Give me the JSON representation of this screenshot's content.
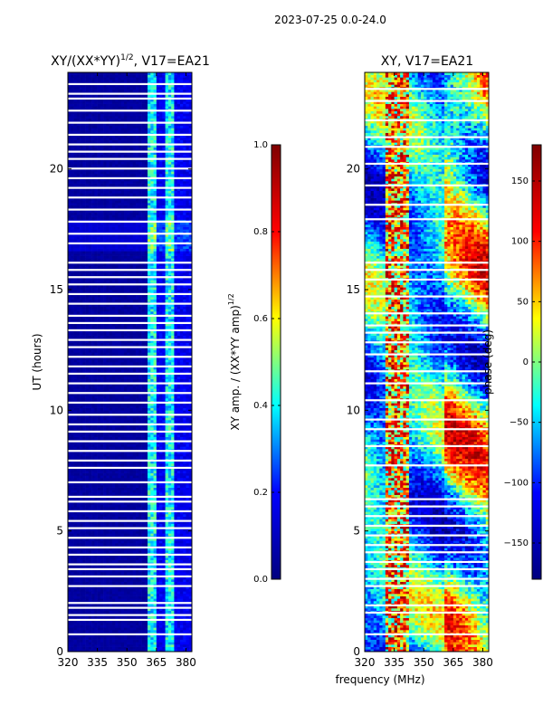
{
  "suptitle": "2023-07-25 0.0-24.0",
  "xlabel": "frequency (MHz)",
  "colormap": [
    "#00007f",
    "#0000ff",
    "#00ffff",
    "#ffff00",
    "#ff0000",
    "#7f0000"
  ],
  "chart_data": [
    {
      "type": "heatmap",
      "title": "XY/(XX*YY)",
      "title_exponent": "1/2",
      "title_suffix": ", V17=EA21",
      "ylabel": "UT (hours)",
      "xlim": [
        320,
        383
      ],
      "ylim": [
        0,
        24
      ],
      "xticks": [
        320,
        335,
        350,
        365,
        380
      ],
      "yticks": [
        0,
        5,
        10,
        15,
        20
      ],
      "bright_bands_mhz": [
        [
          360,
          365
        ],
        [
          370,
          374
        ]
      ],
      "flagged_rows_hours": [
        0.7,
        1.3,
        1.5,
        1.8,
        2.0,
        2.7,
        3.1,
        3.4,
        3.6,
        4.0,
        4.3,
        4.7,
        5.1,
        5.4,
        5.8,
        6.2,
        6.4,
        7.0,
        7.6,
        7.9,
        8.3,
        8.7,
        9.1,
        9.4,
        9.8,
        10.3,
        10.7,
        11.1,
        11.5,
        11.8,
        12.2,
        12.6,
        12.9,
        13.3,
        13.6,
        13.9,
        14.4,
        14.8,
        15.2,
        15.5,
        15.8,
        16.1,
        16.9,
        17.3,
        17.8,
        18.3,
        18.8,
        19.2,
        19.6,
        20.0,
        20.4,
        20.7,
        21.0,
        21.4,
        21.9,
        22.4,
        22.9,
        23.1,
        23.5
      ]
    },
    {
      "type": "colorbar",
      "label": "XY amp. / (XX*YY amp)",
      "label_exponent": "1/2",
      "range": [
        0.0,
        1.0
      ],
      "ticks": [
        "0.0",
        "0.2",
        "0.4",
        "0.6",
        "0.8",
        "1.0"
      ]
    },
    {
      "type": "heatmap",
      "title": "XY, V17=EA21",
      "ylabel": "",
      "xlim": [
        320,
        383
      ],
      "ylim": [
        0,
        24
      ],
      "xticks": [
        320,
        335,
        350,
        365,
        380
      ],
      "yticks": [
        0,
        5,
        10,
        15,
        20
      ],
      "noisy_band_mhz": [
        330,
        343
      ],
      "flagged_rows_hours": [
        0.7,
        1.6,
        1.9,
        2.7,
        3.0,
        3.4,
        3.7,
        4.1,
        4.4,
        4.8,
        5.2,
        5.6,
        6.0,
        6.3,
        7.7,
        8.5,
        9.2,
        9.6,
        10.4,
        11.1,
        11.6,
        12.3,
        12.8,
        13.2,
        13.5,
        14.0,
        14.7,
        15.4,
        15.8,
        16.1,
        17.9,
        18.5,
        19.3,
        20.2,
        20.9,
        21.3,
        22.0,
        22.8,
        23.3
      ]
    },
    {
      "type": "colorbar",
      "label": "phase (deg)",
      "range": [
        -180,
        180
      ],
      "ticks": [
        "−150",
        "−100",
        "−50",
        "0",
        "50",
        "100",
        "150"
      ],
      "tick_values": [
        -150,
        -100,
        -50,
        0,
        50,
        100,
        150
      ]
    }
  ]
}
